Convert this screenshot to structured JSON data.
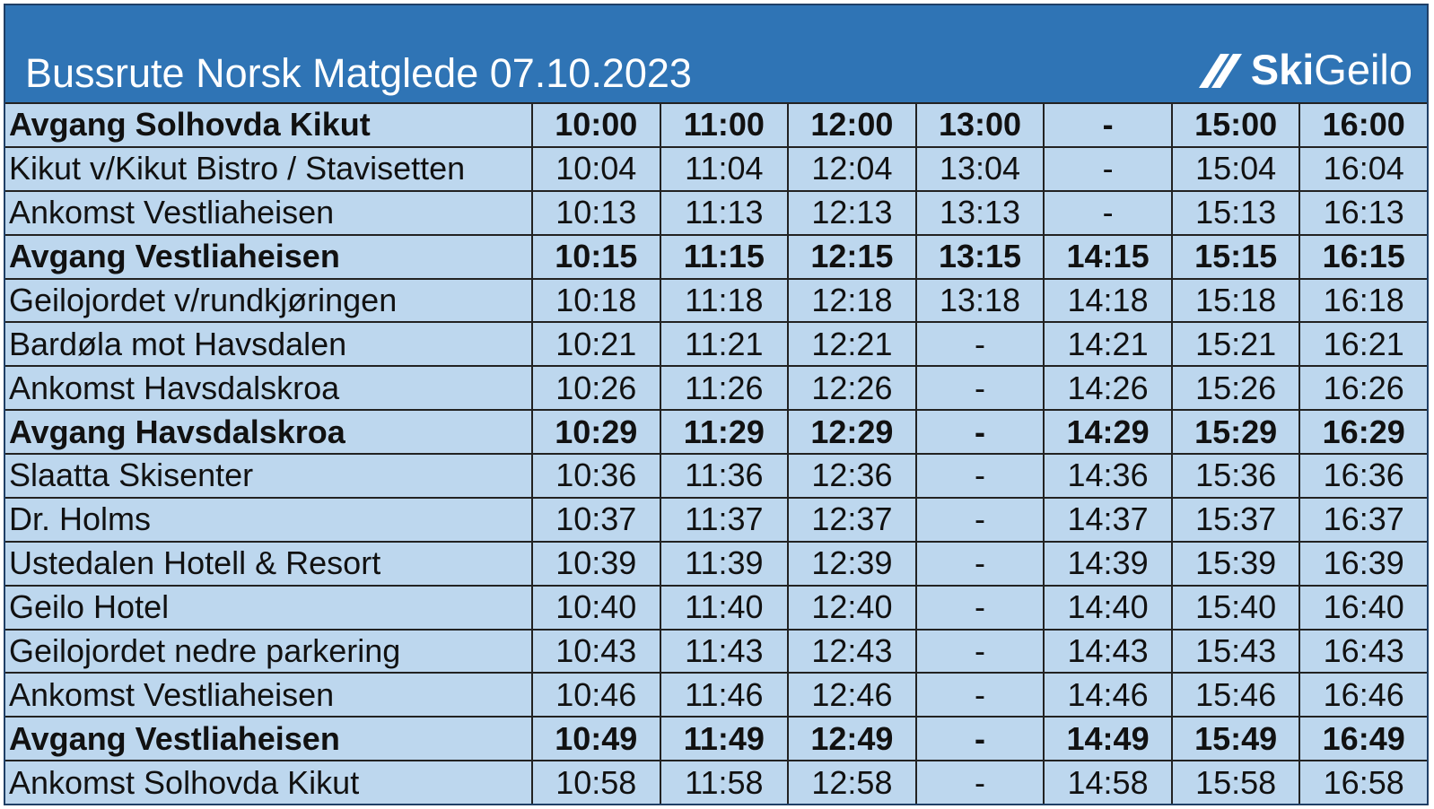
{
  "header": {
    "title": "Bussrute Norsk Matgledе 07.10.2023",
    "logo": {
      "bold": "Ski",
      "regular": "Geilo"
    }
  },
  "table": {
    "rows": [
      {
        "bold": true,
        "cells": [
          "Avgang Solhovda Kikut",
          "10:00",
          "11:00",
          "12:00",
          "13:00",
          "-",
          "15:00",
          "16:00"
        ]
      },
      {
        "bold": false,
        "cells": [
          "Kikut v/Kikut Bistro / Stavisetten",
          "10:04",
          "11:04",
          "12:04",
          "13:04",
          "-",
          "15:04",
          "16:04"
        ]
      },
      {
        "bold": false,
        "cells": [
          "Ankomst Vestliaheisen",
          "10:13",
          "11:13",
          "12:13",
          "13:13",
          "-",
          "15:13",
          "16:13"
        ]
      },
      {
        "bold": true,
        "cells": [
          "Avgang Vestliaheisen",
          "10:15",
          "11:15",
          "12:15",
          "13:15",
          "14:15",
          "15:15",
          "16:15"
        ]
      },
      {
        "bold": false,
        "cells": [
          "Geilojordet v/rundkjøringen",
          "10:18",
          "11:18",
          "12:18",
          "13:18",
          "14:18",
          "15:18",
          "16:18"
        ]
      },
      {
        "bold": false,
        "cells": [
          "Bardøla mot Havsdalen",
          "10:21",
          "11:21",
          "12:21",
          "-",
          "14:21",
          "15:21",
          "16:21"
        ]
      },
      {
        "bold": false,
        "cells": [
          "Ankomst Havsdalskroa",
          "10:26",
          "11:26",
          "12:26",
          "-",
          "14:26",
          "15:26",
          "16:26"
        ]
      },
      {
        "bold": true,
        "cells": [
          "Avgang Havsdalskroa",
          "10:29",
          "11:29",
          "12:29",
          "-",
          "14:29",
          "15:29",
          "16:29"
        ]
      },
      {
        "bold": false,
        "cells": [
          "Slaatta Skisenter",
          "10:36",
          "11:36",
          "12:36",
          "-",
          "14:36",
          "15:36",
          "16:36"
        ]
      },
      {
        "bold": false,
        "cells": [
          "Dr. Holms",
          "10:37",
          "11:37",
          "12:37",
          "-",
          "14:37",
          "15:37",
          "16:37"
        ]
      },
      {
        "bold": false,
        "cells": [
          "Ustedalen Hotell & Resort",
          "10:39",
          "11:39",
          "12:39",
          "-",
          "14:39",
          "15:39",
          "16:39"
        ]
      },
      {
        "bold": false,
        "cells": [
          "Geilo Hotel",
          "10:40",
          "11:40",
          "12:40",
          "-",
          "14:40",
          "15:40",
          "16:40"
        ]
      },
      {
        "bold": false,
        "cells": [
          "Geilojordet nedre parkering",
          "10:43",
          "11:43",
          "12:43",
          "-",
          "14:43",
          "15:43",
          "16:43"
        ]
      },
      {
        "bold": false,
        "cells": [
          "Ankomst Vestliaheisen",
          "10:46",
          "11:46",
          "12:46",
          "-",
          "14:46",
          "15:46",
          "16:46"
        ]
      },
      {
        "bold": true,
        "cells": [
          "Avgang Vestliaheisen",
          "10:49",
          "11:49",
          "12:49",
          "-",
          "14:49",
          "15:49",
          "16:49"
        ]
      },
      {
        "bold": false,
        "cells": [
          "Ankomst Solhovda Kikut",
          "10:58",
          "11:58",
          "12:58",
          "-",
          "14:58",
          "15:58",
          "16:58"
        ]
      }
    ]
  }
}
